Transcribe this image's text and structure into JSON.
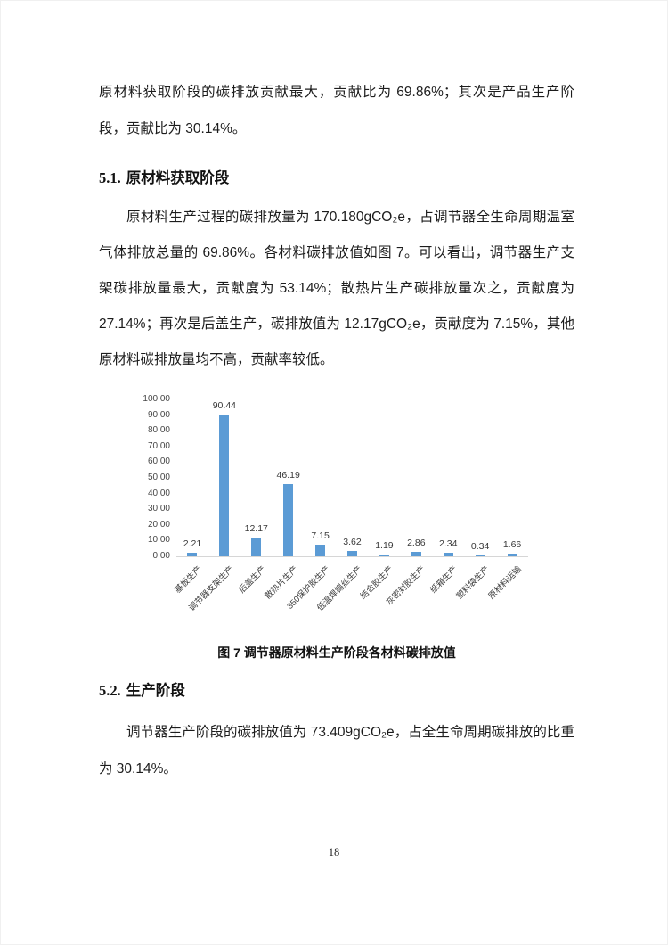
{
  "paragraphs": {
    "p1": "原材料获取阶段的碳排放贡献最大，贡献比为 69.86%；其次是产品生产阶段，贡献比为 30.14%。",
    "p2": "原材料生产过程的碳排放量为 170.180gCO₂e，占调节器全生命周期温室气体排放总量的 69.86%。各材料碳排放值如图 7。可以看出，调节器生产支架碳排放量最大，贡献度为 53.14%；散热片生产碳排放量次之，贡献度为 27.14%；再次是后盖生产，碳排放值为 12.17gCO₂e，贡献度为 7.15%，其他原材料碳排放量均不高，贡献率较低。",
    "p3": "调节器生产阶段的碳排放值为 73.409gCO₂e，占全生命周期碳排放的比重为 30.14%。"
  },
  "headings": {
    "s51_number": "5.1.",
    "s51_title": "原材料获取阶段",
    "s52_number": "5.2.",
    "s52_title": "生产阶段"
  },
  "figure": {
    "caption": "图 7 调节器原材料生产阶段各材料碳排放值"
  },
  "page": {
    "number": "18"
  },
  "chart_data": {
    "type": "bar",
    "categories": [
      "基板生产",
      "调节器支架生产",
      "后盖生产",
      "散热片生产",
      "350保护胶生产",
      "低温焊锡丝生产",
      "结合胶生产",
      "灰密封胶生产",
      "纸箱生产",
      "塑料袋生产",
      "原材料运输"
    ],
    "values": [
      2.21,
      90.44,
      12.17,
      46.19,
      7.15,
      3.62,
      1.19,
      2.86,
      2.34,
      0.34,
      1.66
    ],
    "title": "",
    "xlabel": "",
    "ylabel": "",
    "ylim": [
      0,
      100
    ],
    "ytick_step": 10,
    "ytick_decimals": 2,
    "data_labels": true,
    "grid": false,
    "legend": false,
    "bar_color": "#5B9BD5",
    "axis_line_color": "#D6D6D6",
    "label_color": "#383838",
    "x_label_rotation_deg": -45
  }
}
